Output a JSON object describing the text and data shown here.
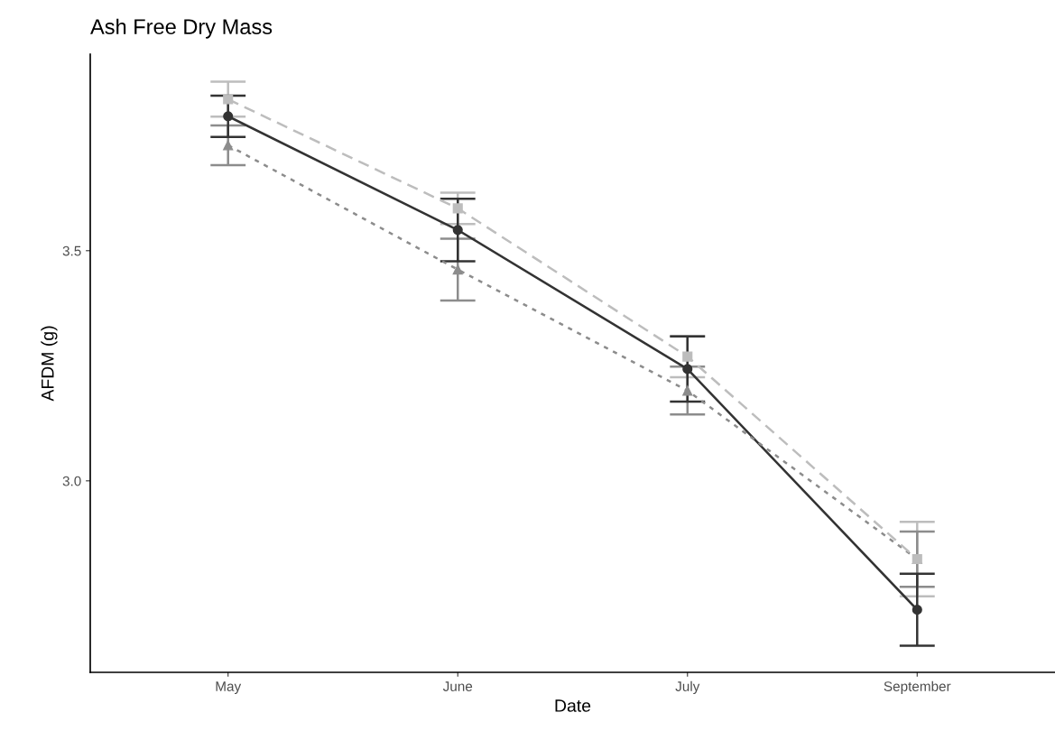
{
  "chart_data": {
    "type": "line",
    "title": "Ash Free Dry Mass",
    "xlabel": "Date",
    "ylabel": "AFDM (g)",
    "categories": [
      "May",
      "June",
      "July",
      "September"
    ],
    "series": [
      {
        "color": "#bdbdbd",
        "values": [
          3.829,
          3.592,
          3.27,
          2.83
        ],
        "errors": [
          0.038,
          0.034,
          0.045,
          0.081
        ],
        "marker": "square",
        "line_style": "dashed"
      },
      {
        "color": "#8c8c8c",
        "values": [
          3.729,
          3.459,
          3.196,
          2.83
        ],
        "errors": [
          0.043,
          0.067,
          0.052,
          0.06
        ],
        "marker": "triangle",
        "line_style": "dotted"
      },
      {
        "color": "#333333",
        "values": [
          3.792,
          3.545,
          3.243,
          2.72
        ],
        "errors": [
          0.045,
          0.068,
          0.071,
          0.078
        ],
        "marker": "circle",
        "line_style": "solid"
      }
    ],
    "ylim": [
      2.584,
      3.927
    ],
    "yticks": [
      {
        "value": 3.0,
        "label": "3.0"
      },
      {
        "value": 3.5,
        "label": "3.5"
      }
    ],
    "grid": false,
    "legend": false
  }
}
